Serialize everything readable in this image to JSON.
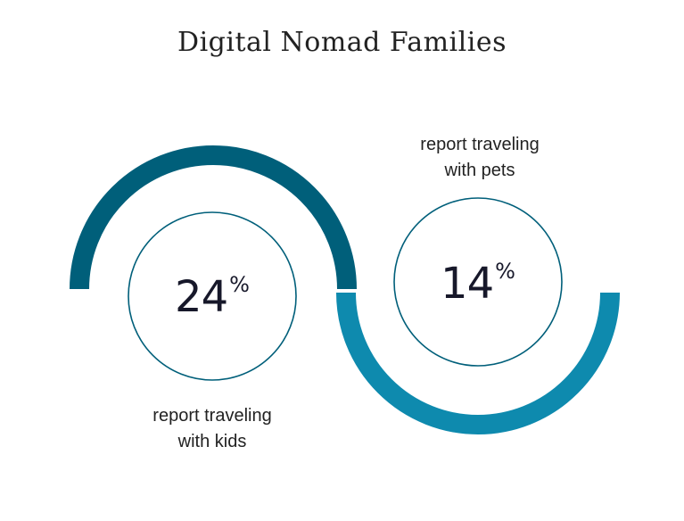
{
  "title": "Digital Nomad Families",
  "chart_data": {
    "type": "pie",
    "title": "Digital Nomad Families",
    "items": [
      {
        "value": 24,
        "unit": "%",
        "label_line1": "report traveling",
        "label_line2": "with kids",
        "color": "#005f7a"
      },
      {
        "value": 14,
        "unit": "%",
        "label_line1": "report traveling",
        "label_line2": "with pets",
        "color": "#0e8aae"
      }
    ]
  }
}
